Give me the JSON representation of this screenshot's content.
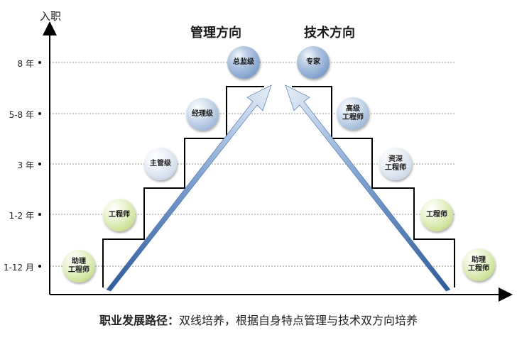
{
  "headings": {
    "management": "管理方向",
    "technical": "技术方向"
  },
  "axes": {
    "y_title": "入职",
    "y_ticks": [
      "8 年",
      "5-8 年",
      "3 年",
      "1-2 年",
      "1-12 月"
    ]
  },
  "management_nodes": [
    {
      "label": "助理\n工程师",
      "color": "green"
    },
    {
      "label": "工程师",
      "color": "green"
    },
    {
      "label": "主管级",
      "color": "lightblue"
    },
    {
      "label": "经理级",
      "color": "midblue"
    },
    {
      "label": "总监级",
      "color": "darkblue"
    }
  ],
  "technical_nodes": [
    {
      "label": "助理\n工程师",
      "color": "green"
    },
    {
      "label": "工程师",
      "color": "green"
    },
    {
      "label": "资深\n工程师",
      "color": "lightblue"
    },
    {
      "label": "高级\n工程师",
      "color": "midblue"
    },
    {
      "label": "专家",
      "color": "darkblue"
    }
  ],
  "caption": {
    "bold": "职业发展路径：",
    "text": "双线培养，根据自身特点管理与技术双方向培养"
  },
  "colors": {
    "arrow_dark": "#5a86c0",
    "arrow_light": "#e6eef8",
    "grid": "#999999",
    "stair": "#000000"
  }
}
